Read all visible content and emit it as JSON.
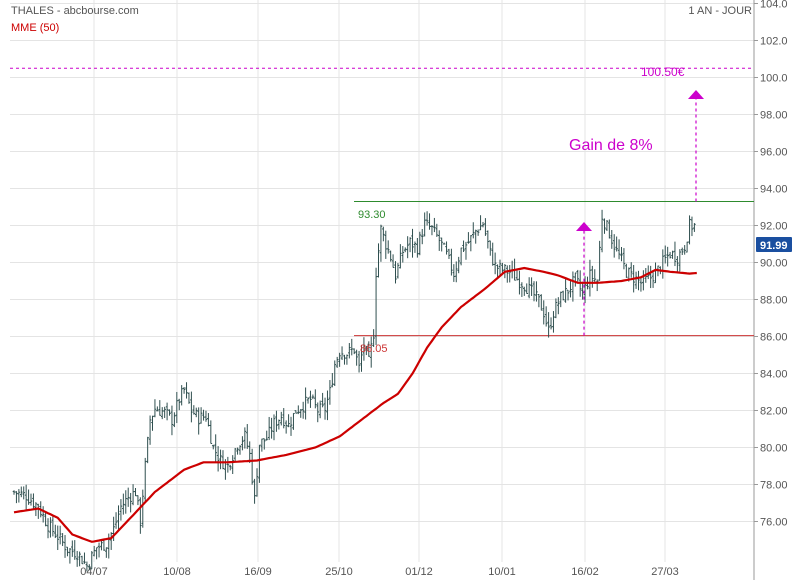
{
  "header": {
    "title": "THALES - abcbourse.com",
    "indicator": "MME (50)",
    "period": "1 AN - JOUR"
  },
  "annotations": {
    "resistance_label": "93.30",
    "support_label": "86.05",
    "target_label": "100.50€",
    "gain_label": "Gain de 8%",
    "last_price_label": "91.99"
  },
  "colors": {
    "bars": "#2f4f4f",
    "ema": "#cc0000",
    "resistance": "#2e8b2e",
    "support": "#cc3333",
    "target": "#cc00cc",
    "last_badge": "#1a4fa0",
    "grid": "#e4e4e4"
  },
  "chart_data": {
    "type": "ohlc",
    "ylim": [
      75,
      104
    ],
    "y_ticks": [
      "104.0",
      "102.0",
      "100.0",
      "98.00",
      "96.00",
      "94.00",
      "92.00",
      "90.00",
      "88.00",
      "86.00",
      "84.00",
      "82.00",
      "80.00",
      "78.00",
      "76.00"
    ],
    "x_ticks": [
      "04/07",
      "10/08",
      "16/09",
      "25/10",
      "01/12",
      "10/01",
      "16/02",
      "27/03"
    ],
    "levels": {
      "resistance": 93.3,
      "support": 86.05,
      "target": 100.5
    },
    "last_price": 91.99,
    "ema_name": "MME (50)",
    "ema_anchors": [
      [
        0,
        76.5
      ],
      [
        10,
        76.7
      ],
      [
        18,
        76.2
      ],
      [
        24,
        75.3
      ],
      [
        32,
        74.9
      ],
      [
        40,
        75.1
      ],
      [
        48,
        76.2
      ],
      [
        58,
        77.6
      ],
      [
        70,
        78.8
      ],
      [
        78,
        79.2
      ],
      [
        88,
        79.2
      ],
      [
        100,
        79.3
      ],
      [
        112,
        79.6
      ],
      [
        124,
        80.0
      ],
      [
        134,
        80.6
      ],
      [
        144,
        81.6
      ],
      [
        152,
        82.4
      ],
      [
        158,
        82.9
      ],
      [
        164,
        84.0
      ],
      [
        170,
        85.4
      ],
      [
        176,
        86.5
      ],
      [
        184,
        87.6
      ],
      [
        194,
        88.6
      ],
      [
        202,
        89.5
      ],
      [
        210,
        89.7
      ],
      [
        218,
        89.5
      ],
      [
        224,
        89.3
      ],
      [
        232,
        88.9
      ],
      [
        240,
        88.9
      ],
      [
        250,
        89.0
      ],
      [
        258,
        89.2
      ],
      [
        264,
        89.6
      ],
      [
        270,
        89.5
      ],
      [
        278,
        89.4
      ],
      [
        288,
        89.5
      ],
      [
        295,
        89.7
      ]
    ],
    "close_anchors": [
      [
        0,
        77.6
      ],
      [
        5,
        77.4
      ],
      [
        10,
        76.8
      ],
      [
        14,
        75.8
      ],
      [
        18,
        75.2
      ],
      [
        22,
        74.5
      ],
      [
        26,
        74.3
      ],
      [
        30,
        73.6
      ],
      [
        34,
        74.6
      ],
      [
        38,
        74.8
      ],
      [
        41,
        75.6
      ],
      [
        44,
        76.8
      ],
      [
        47,
        77.3
      ],
      [
        50,
        77.6
      ],
      [
        52,
        76.0
      ],
      [
        54,
        79.0
      ],
      [
        56,
        81.5
      ],
      [
        58,
        82.1
      ],
      [
        62,
        81.9
      ],
      [
        65,
        81.5
      ],
      [
        68,
        82.6
      ],
      [
        70,
        83.1
      ],
      [
        73,
        82.0
      ],
      [
        76,
        81.6
      ],
      [
        79,
        81.7
      ],
      [
        82,
        80.0
      ],
      [
        85,
        79.3
      ],
      [
        88,
        79.0
      ],
      [
        92,
        80.2
      ],
      [
        95,
        80.6
      ],
      [
        97,
        79.6
      ],
      [
        99,
        77.2
      ],
      [
        101,
        80.2
      ],
      [
        104,
        80.5
      ],
      [
        107,
        81.3
      ],
      [
        110,
        81.7
      ],
      [
        113,
        81.2
      ],
      [
        116,
        82.0
      ],
      [
        119,
        82.3
      ],
      [
        122,
        82.6
      ],
      [
        125,
        82.0
      ],
      [
        128,
        82.1
      ],
      [
        130,
        83.0
      ],
      [
        132,
        84.5
      ],
      [
        134,
        85.2
      ],
      [
        137,
        85.1
      ],
      [
        140,
        85.3
      ],
      [
        142,
        84.3
      ],
      [
        144,
        85.6
      ],
      [
        146,
        84.6
      ],
      [
        148,
        86.2
      ],
      [
        149,
        89.5
      ],
      [
        151,
        91.8
      ],
      [
        153,
        91.0
      ],
      [
        155,
        90.3
      ],
      [
        157,
        89.3
      ],
      [
        160,
        90.6
      ],
      [
        163,
        91.1
      ],
      [
        166,
        90.8
      ],
      [
        169,
        92.1
      ],
      [
        172,
        91.8
      ],
      [
        175,
        91.2
      ],
      [
        178,
        90.4
      ],
      [
        181,
        89.4
      ],
      [
        184,
        90.7
      ],
      [
        187,
        91.1
      ],
      [
        190,
        91.7
      ],
      [
        193,
        92.1
      ],
      [
        196,
        90.5
      ],
      [
        198,
        89.8
      ],
      [
        201,
        89.6
      ],
      [
        204,
        89.5
      ],
      [
        207,
        89.1
      ],
      [
        210,
        88.8
      ],
      [
        213,
        88.4
      ],
      [
        216,
        87.9
      ],
      [
        218,
        87.3
      ],
      [
        220,
        86.3
      ],
      [
        222,
        87.3
      ],
      [
        225,
        88.1
      ],
      [
        228,
        88.5
      ],
      [
        231,
        89.1
      ],
      [
        234,
        88.3
      ],
      [
        237,
        89.3
      ],
      [
        240,
        89.0
      ],
      [
        242,
        92.5
      ],
      [
        245,
        91.6
      ],
      [
        248,
        90.6
      ],
      [
        250,
        90.1
      ],
      [
        252,
        89.5
      ],
      [
        255,
        89.2
      ],
      [
        258,
        88.9
      ],
      [
        261,
        89.1
      ],
      [
        264,
        89.4
      ],
      [
        267,
        90.0
      ],
      [
        270,
        90.5
      ],
      [
        273,
        90.3
      ],
      [
        276,
        90.9
      ],
      [
        278,
        91.99
      ]
    ]
  }
}
